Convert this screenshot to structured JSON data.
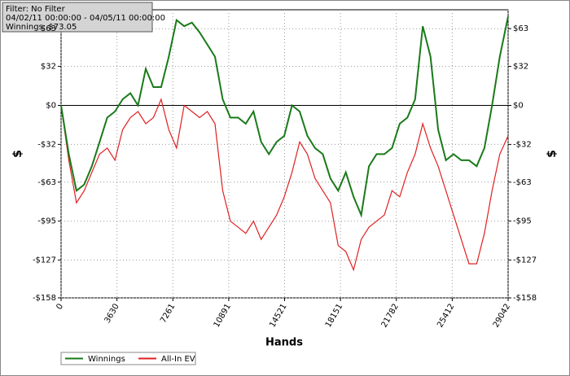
{
  "chart_data": {
    "type": "line",
    "info": [
      "Filter: No Filter",
      "04/02/11 00:00:00 - 04/05/11 00:00:00",
      "Winnings: $73.05"
    ],
    "x_label": "Hands",
    "y_label": "$",
    "x": [
      0,
      500,
      1000,
      1500,
      2000,
      2500,
      3000,
      3500,
      4000,
      4500,
      5000,
      5500,
      6000,
      6500,
      7000,
      7500,
      8000,
      8500,
      9000,
      9500,
      10000,
      10500,
      11000,
      11500,
      12000,
      12500,
      13000,
      13500,
      14000,
      14500,
      15000,
      15500,
      16000,
      16500,
      17000,
      17500,
      18000,
      18500,
      19000,
      19500,
      20000,
      20500,
      21000,
      21500,
      22000,
      22500,
      23000,
      23500,
      24000,
      24500,
      25000,
      25500,
      26000,
      26500,
      27000,
      27500,
      28000,
      28500,
      29042
    ],
    "series": [
      {
        "name": "Winnings",
        "color": "#1a7a1a",
        "values": [
          0,
          -40,
          -70,
          -65,
          -50,
          -30,
          -10,
          -5,
          5,
          10,
          0,
          30,
          15,
          15,
          40,
          70,
          65,
          68,
          60,
          50,
          40,
          5,
          -10,
          -10,
          -15,
          -5,
          -30,
          -40,
          -30,
          -25,
          0,
          -5,
          -25,
          -35,
          -40,
          -60,
          -70,
          -55,
          -75,
          -90,
          -50,
          -40,
          -40,
          -35,
          -15,
          -10,
          5,
          65,
          40,
          -20,
          -45,
          -40,
          -45,
          -45,
          -50,
          -35,
          0,
          40,
          73.05
        ]
      },
      {
        "name": "All-In EV",
        "color": "#e02020",
        "values": [
          0,
          -45,
          -80,
          -70,
          -55,
          -40,
          -35,
          -45,
          -20,
          -10,
          -5,
          -15,
          -10,
          5,
          -20,
          -35,
          0,
          -5,
          -10,
          -5,
          -15,
          -70,
          -95,
          -100,
          -105,
          -95,
          -110,
          -100,
          -90,
          -75,
          -55,
          -30,
          -40,
          -60,
          -70,
          -80,
          -115,
          -120,
          -135,
          -110,
          -100,
          -95,
          -90,
          -70,
          -75,
          -55,
          -40,
          -15,
          -35,
          -50,
          -70,
          -90,
          -110,
          -130,
          -130,
          -105,
          -70,
          -40,
          -25
        ]
      }
    ],
    "xlim": [
      0,
      29042
    ],
    "xticks": [
      0,
      3630,
      7261,
      10891,
      14521,
      18151,
      21782,
      25412,
      29042
    ],
    "ylim": [
      -158,
      78.5
    ],
    "yticks": [
      {
        "value": -158,
        "label": "-$158"
      },
      {
        "value": -127,
        "label": "-$127"
      },
      {
        "value": -95,
        "label": "-$95"
      },
      {
        "value": -63,
        "label": "-$63"
      },
      {
        "value": -32,
        "label": "-$32"
      },
      {
        "value": 0,
        "label": "$0"
      },
      {
        "value": 32,
        "label": "$32"
      },
      {
        "value": 63,
        "label": "$63"
      }
    ],
    "grid": true
  }
}
